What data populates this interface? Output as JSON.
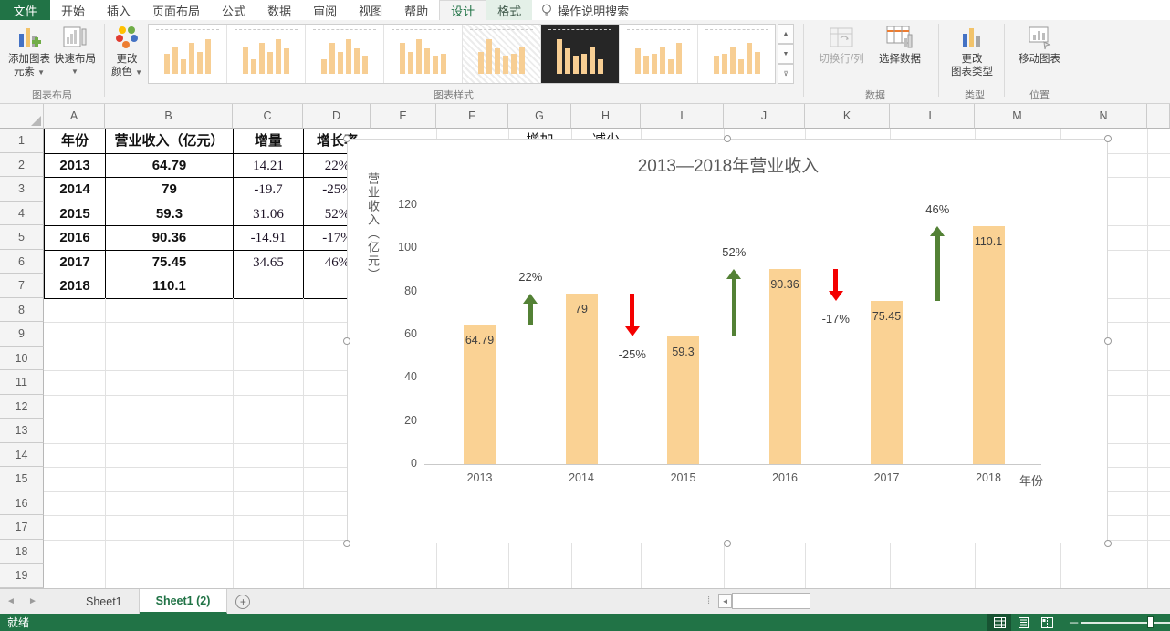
{
  "titlebar_tabs": [
    {
      "label": "文件",
      "type": "file"
    },
    {
      "label": "开始",
      "type": "normal"
    },
    {
      "label": "插入",
      "type": "normal"
    },
    {
      "label": "页面布局",
      "type": "normal"
    },
    {
      "label": "公式",
      "type": "normal"
    },
    {
      "label": "数据",
      "type": "normal"
    },
    {
      "label": "审阅",
      "type": "normal"
    },
    {
      "label": "视图",
      "type": "normal"
    },
    {
      "label": "帮助",
      "type": "normal"
    },
    {
      "label": "设计",
      "type": "active"
    },
    {
      "label": "格式",
      "type": "contextual"
    }
  ],
  "tell_me": {
    "label": "操作说明搜索"
  },
  "ribbon": {
    "add_chart_element": {
      "line1": "添加图表",
      "line2": "元素"
    },
    "quick_layout": {
      "line1": "快速布局",
      "line2": ""
    },
    "change_colors": {
      "line1": "更改",
      "line2": "颜色"
    },
    "switch_row_col": {
      "label": "切换行/列",
      "enabled": false
    },
    "select_data": {
      "label": "选择数据"
    },
    "change_chart_type": {
      "line1": "更改",
      "line2": "图表类型"
    },
    "move_chart": {
      "label": "移动图表"
    },
    "groups": {
      "layout": "图表布局",
      "styles": "图表样式",
      "data": "数据",
      "type": "类型",
      "location": "位置"
    },
    "style_gallery": {
      "visible_count": 8,
      "selected_index": 5,
      "hatched_index": 4
    }
  },
  "spreadsheet": {
    "column_letters": [
      "A",
      "B",
      "C",
      "D",
      "E",
      "F",
      "G",
      "H",
      "I",
      "J",
      "K",
      "L",
      "M",
      "N"
    ],
    "visible_rows": 19,
    "table": {
      "headers": [
        "年份",
        "营业收入（亿元）",
        "增量",
        "增长率"
      ],
      "rows": [
        [
          "2013",
          "64.79",
          "14.21",
          "22%"
        ],
        [
          "2014",
          "79",
          "-19.7",
          "-25%"
        ],
        [
          "2015",
          "59.3",
          "31.06",
          "52%"
        ],
        [
          "2016",
          "90.36",
          "-14.91",
          "-17%"
        ],
        [
          "2017",
          "75.45",
          "34.65",
          "46%"
        ],
        [
          "2018",
          "110.1",
          "",
          ""
        ]
      ]
    },
    "row1_extra": [
      {
        "col": "G",
        "label": "增加"
      },
      {
        "col": "H",
        "label": "减少"
      }
    ]
  },
  "chart_data": {
    "type": "bar",
    "title": "2013—2018年营业收入",
    "categories": [
      "2013",
      "2014",
      "2015",
      "2016",
      "2017",
      "2018"
    ],
    "values": [
      64.79,
      79,
      59.3,
      90.36,
      75.45,
      110.1
    ],
    "bar_labels": [
      "64.79",
      "79",
      "59.3",
      "90.36",
      "75.45",
      "110.1"
    ],
    "changes": [
      {
        "label": "22%",
        "direction": "up"
      },
      {
        "label": "-25%",
        "direction": "down"
      },
      {
        "label": "52%",
        "direction": "up"
      },
      {
        "label": "-17%",
        "direction": "down"
      },
      {
        "label": "46%",
        "direction": "up"
      }
    ],
    "ylabel": "营业收入（亿元）",
    "xlabel": "年份",
    "ylim": [
      0,
      120
    ],
    "ytick_step": 20,
    "yticks": [
      "0",
      "20",
      "40",
      "60",
      "80",
      "100",
      "120"
    ],
    "grid": false,
    "legend": "none",
    "colors": {
      "bar": "#FAD294",
      "up": "#538135",
      "down": "#F40000"
    }
  },
  "sheet_nav": {
    "tabs": [
      {
        "label": "Sheet1",
        "active": false
      },
      {
        "label": "Sheet1 (2)",
        "active": true
      }
    ],
    "add_label": "+"
  },
  "status_bar": {
    "ready": "就绪"
  },
  "colors": {
    "brand_green": "#217346"
  }
}
